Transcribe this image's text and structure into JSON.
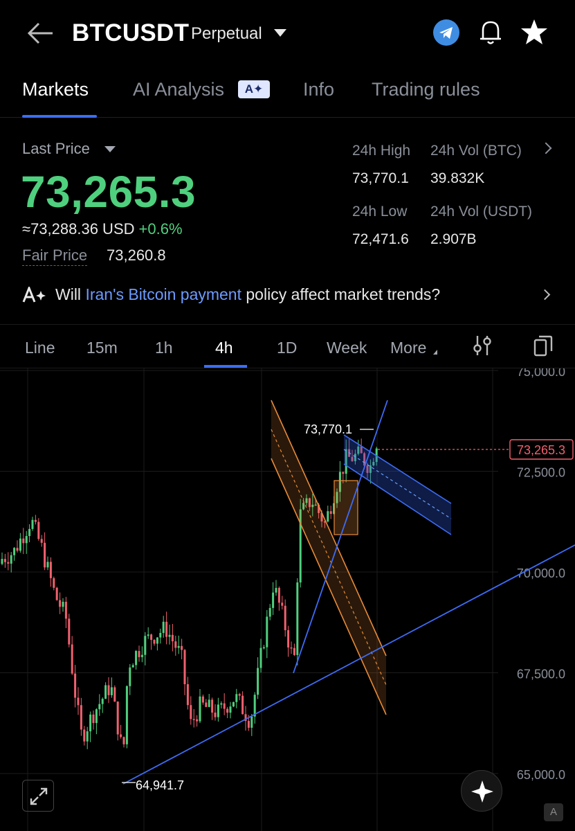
{
  "header": {
    "symbol": "BTCUSDT",
    "contract_type": "Perpetual"
  },
  "tabs": [
    {
      "label": "Markets"
    },
    {
      "label": "AI Analysis"
    },
    {
      "label": "Info"
    },
    {
      "label": "Trading rules"
    }
  ],
  "ai_badge": "A✦",
  "price": {
    "last_price_label": "Last Price",
    "last_price": "73,265.3",
    "usd_value": "≈73,288.36 USD",
    "change": "+0.6%",
    "fair_price_label": "Fair Price",
    "fair_price": "73,260.8"
  },
  "stats": {
    "high_label": "24h High",
    "high": "73,770.1",
    "vol_btc_label": "24h Vol (BTC)",
    "vol_btc": "39.832K",
    "low_label": "24h Low",
    "low": "72,471.6",
    "vol_usdt_label": "24h Vol  (USDT)",
    "vol_usdt": "2.907B"
  },
  "ai_question": {
    "pre": "Will ",
    "highlight": "Iran's Bitcoin payment",
    "post": " policy affect market trends?"
  },
  "intervals": [
    {
      "label": "Line"
    },
    {
      "label": "15m"
    },
    {
      "label": "1h"
    },
    {
      "label": "4h"
    },
    {
      "label": "1D"
    },
    {
      "label": "Week"
    },
    {
      "label": "More"
    }
  ],
  "chart": {
    "price_axis": [
      "75,000.0",
      "72,500.0",
      "70,000.0",
      "67,500.0",
      "65,000.0"
    ],
    "current_price_tag": "73,265.3",
    "high_marker": "73,770.1",
    "low_marker": "64,941.7",
    "colors": {
      "up": "#4fd07e",
      "down": "#f0606e",
      "trendline": "#3d6cf5",
      "channel": "#e98b3a"
    }
  },
  "corner_badge": "A"
}
